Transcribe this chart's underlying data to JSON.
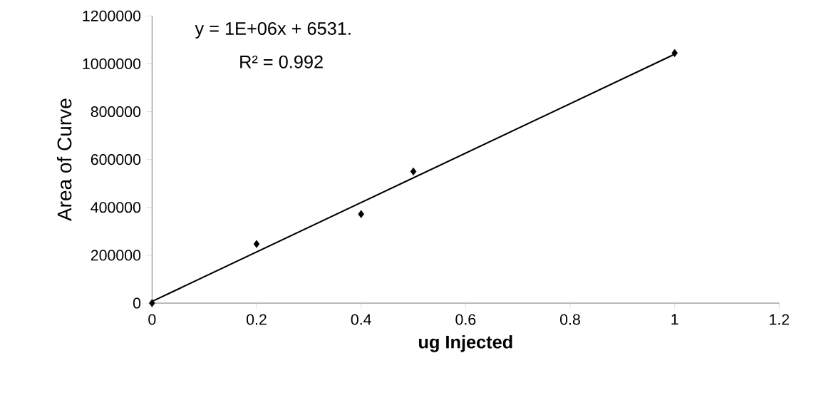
{
  "chart_data": {
    "type": "scatter",
    "xlabel": "ug Injected",
    "ylabel": "Area of Curve",
    "annotations": [
      "y = 1E+06x + 6531.",
      "R² = 0.992"
    ],
    "series": [
      {
        "color": "#000000",
        "marker": "diamond",
        "x": [
          0,
          0.2,
          0.4,
          0.5,
          1
        ],
        "values": [
          0,
          247000,
          372000,
          550000,
          1045000
        ]
      },
      {
        "type": "line",
        "color": "#000000",
        "line_style": "solid",
        "x": [
          0,
          1
        ],
        "values": [
          7000,
          1040000
        ]
      }
    ],
    "xlim": [
      0,
      1.2
    ],
    "xticks": [
      0,
      0.2,
      0.4,
      0.6,
      0.8,
      1,
      1.2
    ],
    "ylim": [
      0,
      1200000
    ],
    "yticks": [
      0,
      200000,
      400000,
      600000,
      800000,
      1000000,
      1200000
    ],
    "grid": false
  }
}
